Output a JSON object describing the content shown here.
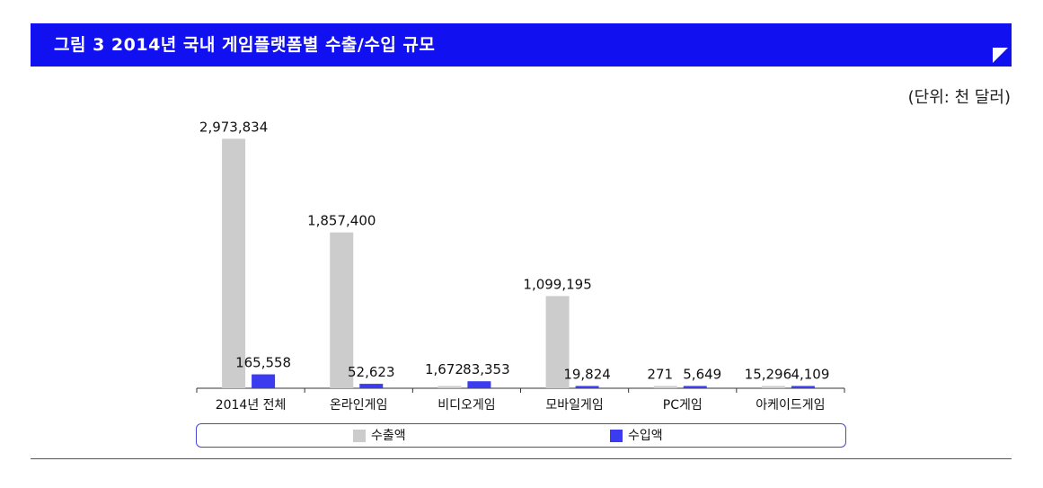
{
  "header": {
    "title": "그림 3 2014년 국내 게임플랫폼별 수출/수입 규모",
    "unit": "(단위: 천 달러)"
  },
  "colors": {
    "title_bar": "#1010f0",
    "export": "#cccccc",
    "import": "#3b3bf0"
  },
  "chart_data": {
    "type": "bar",
    "categories": [
      "2014년 전체",
      "온라인게임",
      "비디오게임",
      "모바일게임",
      "PC게임",
      "아케이드게임"
    ],
    "series": [
      {
        "name": "수출액",
        "values": [
          2973834,
          1857400,
          1672,
          1099195,
          271,
          15296
        ],
        "labels": [
          "2,973,834",
          "1,857,400",
          "1,672",
          "1,099,195",
          "271",
          "15,296"
        ]
      },
      {
        "name": "수입액",
        "values": [
          165558,
          52623,
          83353,
          19824,
          5649,
          4109
        ],
        "labels": [
          "165,558",
          "52,623",
          "83,353",
          "19,824",
          "5,649",
          "4,109"
        ]
      }
    ],
    "ylim": [
      0,
      3000000
    ],
    "legend_position": "bottom",
    "grid": false
  }
}
